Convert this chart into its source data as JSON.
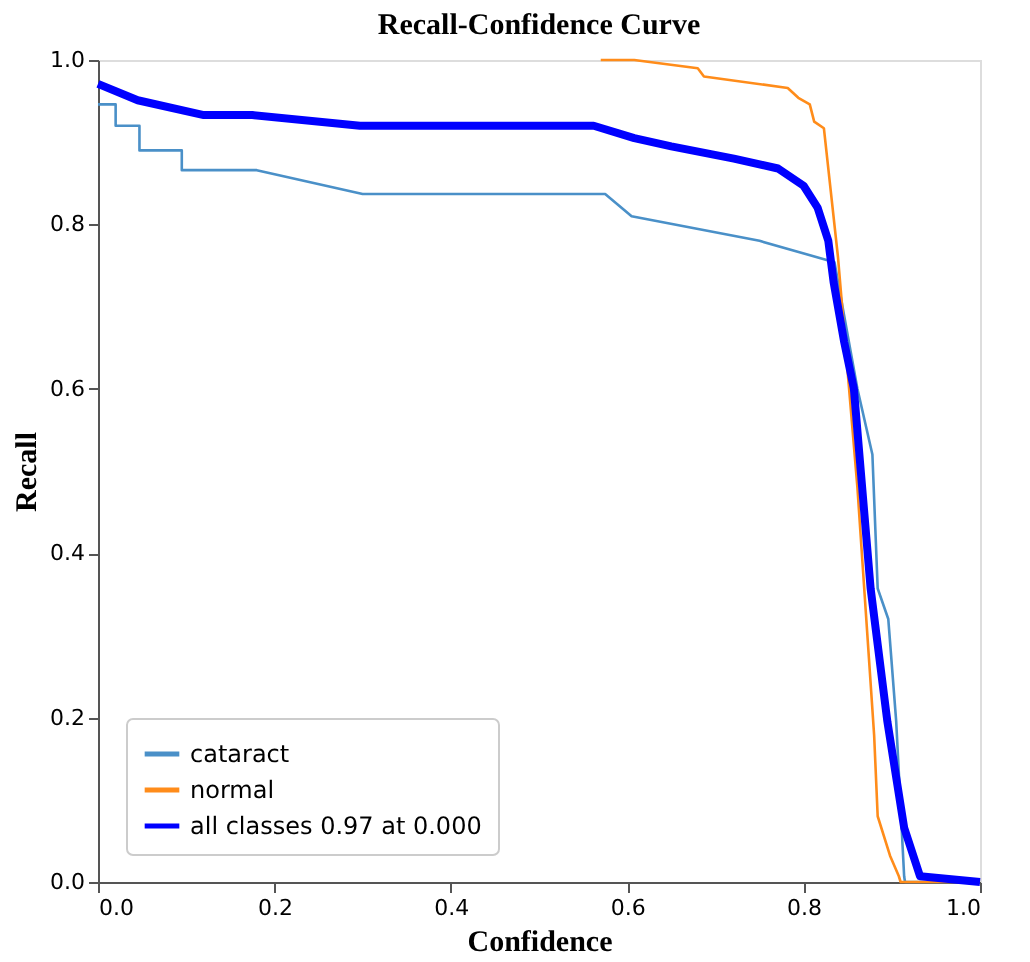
{
  "chart_data": {
    "type": "line",
    "title": "Recall-Confidence Curve",
    "xlabel": "Confidence",
    "ylabel": "Recall",
    "xlim": [
      0,
      1
    ],
    "ylim": [
      0,
      1
    ],
    "xticks": [
      {
        "value": 0,
        "label": "0.0"
      },
      0.2,
      0.4,
      0.6,
      0.8,
      {
        "value": 1,
        "label": "1.0"
      }
    ],
    "yticks": [
      {
        "value": 0,
        "label": "0.0"
      },
      0.2,
      0.4,
      0.6,
      0.8,
      {
        "value": 1,
        "label": "1.0"
      }
    ],
    "grid": false,
    "legend": "bottom left",
    "marker": "none",
    "line_style": "solid",
    "series": [
      {
        "name": "cataract",
        "color": "#4a90c8",
        "x": [
          0,
          0.02,
          0.02,
          0.047,
          0.047,
          0.095,
          0.095,
          0.18,
          0.3,
          0.575,
          0.605,
          0.75,
          0.835,
          0.861,
          0.878,
          0.884,
          0.896,
          0.905,
          0.914,
          0.915,
          1.0
        ],
        "values": [
          0.946,
          0.946,
          0.92,
          0.92,
          0.89,
          0.89,
          0.866,
          0.866,
          0.837,
          0.837,
          0.81,
          0.78,
          0.754,
          0.6,
          0.52,
          0.357,
          0.32,
          0.195,
          0.007,
          0,
          0
        ]
      },
      {
        "name": "normal",
        "color": "#ff8c1a",
        "x": [
          0.57,
          0.608,
          0.68,
          0.687,
          0.782,
          0.794,
          0.807,
          0.812,
          0.823,
          0.839,
          0.861,
          0.88,
          0.884,
          0.898,
          0.908,
          0.91,
          1.0
        ],
        "values": [
          1.0,
          1.0,
          0.99,
          0.98,
          0.966,
          0.954,
          0.946,
          0.925,
          0.917,
          0.76,
          0.48,
          0.178,
          0.08,
          0.032,
          0.007,
          0,
          0
        ]
      },
      {
        "name": "all classes 0.97 at 0.000",
        "color": "#0000ff",
        "x": [
          0,
          0.045,
          0.12,
          0.175,
          0.297,
          0.562,
          0.608,
          0.65,
          0.721,
          0.771,
          0.8,
          0.816,
          0.828,
          0.834,
          0.846,
          0.857,
          0.876,
          0.895,
          0.914,
          0.932,
          1.0
        ],
        "values": [
          0.971,
          0.951,
          0.933,
          0.933,
          0.92,
          0.92,
          0.905,
          0.895,
          0.88,
          0.868,
          0.847,
          0.82,
          0.78,
          0.73,
          0.657,
          0.6,
          0.357,
          0.195,
          0.066,
          0.007,
          0
        ]
      }
    ]
  }
}
